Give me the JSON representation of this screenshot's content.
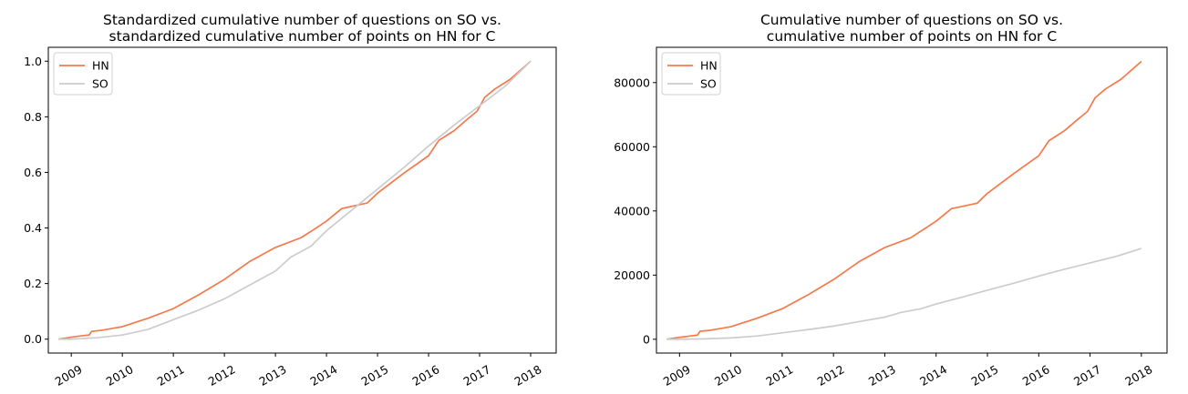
{
  "chart_data": [
    {
      "type": "line",
      "title": "Standardized cumulative number of questions on SO vs.\nstandardized cumulative number of points on HN for C",
      "xlabel": "",
      "ylabel": "",
      "xlim": [
        2008.55,
        2018.5
      ],
      "ylim": [
        -0.05,
        1.05
      ],
      "xticks": [
        2009,
        2010,
        2011,
        2012,
        2013,
        2014,
        2015,
        2016,
        2017,
        2018
      ],
      "yticks": [
        0.0,
        0.2,
        0.4,
        0.6,
        0.8,
        1.0
      ],
      "ytick_labels": [
        "0.0",
        "0.2",
        "0.4",
        "0.6",
        "0.8",
        "1.0"
      ],
      "xtick_rotation": 30,
      "grid": false,
      "legend": "top-left",
      "series": [
        {
          "name": "HN",
          "color": "#f4794b",
          "x": [
            2008.75,
            2009.0,
            2009.2,
            2009.35,
            2009.4,
            2009.6,
            2010.0,
            2010.5,
            2011.0,
            2011.5,
            2012.0,
            2012.5,
            2013.0,
            2013.5,
            2013.8,
            2014.0,
            2014.3,
            2014.8,
            2015.0,
            2015.5,
            2016.0,
            2016.2,
            2016.5,
            2016.75,
            2016.95,
            2017.1,
            2017.3,
            2017.6,
            2018.0
          ],
          "y": [
            0.0,
            0.007,
            0.012,
            0.015,
            0.028,
            0.032,
            0.045,
            0.075,
            0.11,
            0.16,
            0.215,
            0.28,
            0.33,
            0.365,
            0.4,
            0.425,
            0.47,
            0.49,
            0.525,
            0.595,
            0.66,
            0.715,
            0.75,
            0.79,
            0.82,
            0.87,
            0.9,
            0.935,
            1.0
          ]
        },
        {
          "name": "SO",
          "color": "#cccccc",
          "x": [
            2008.75,
            2009.0,
            2009.5,
            2010.0,
            2010.5,
            2011.0,
            2011.5,
            2012.0,
            2012.5,
            2013.0,
            2013.3,
            2013.7,
            2014.0,
            2014.5,
            2015.0,
            2015.5,
            2016.0,
            2016.5,
            2017.0,
            2017.5,
            2018.0
          ],
          "y": [
            0.0,
            0.0,
            0.005,
            0.015,
            0.035,
            0.07,
            0.105,
            0.145,
            0.195,
            0.245,
            0.295,
            0.335,
            0.39,
            0.465,
            0.54,
            0.615,
            0.695,
            0.77,
            0.84,
            0.91,
            1.0
          ]
        }
      ]
    },
    {
      "type": "line",
      "title": "Cumulative number of questions on SO vs.\ncumulative number of points on HN for C",
      "xlabel": "",
      "ylabel": "",
      "xlim": [
        2008.55,
        2018.5
      ],
      "ylim": [
        -4300,
        91000
      ],
      "xticks": [
        2009,
        2010,
        2011,
        2012,
        2013,
        2014,
        2015,
        2016,
        2017,
        2018
      ],
      "yticks": [
        0,
        20000,
        40000,
        60000,
        80000
      ],
      "ytick_labels": [
        "0",
        "20000",
        "40000",
        "60000",
        "80000"
      ],
      "xtick_rotation": 30,
      "grid": false,
      "legend": "top-left",
      "series": [
        {
          "name": "HN",
          "color": "#f4794b",
          "x": [
            2008.75,
            2009.0,
            2009.2,
            2009.35,
            2009.4,
            2009.6,
            2010.0,
            2010.5,
            2011.0,
            2011.5,
            2012.0,
            2012.5,
            2013.0,
            2013.5,
            2013.8,
            2014.0,
            2014.3,
            2014.8,
            2015.0,
            2015.5,
            2016.0,
            2016.2,
            2016.5,
            2016.75,
            2016.95,
            2017.1,
            2017.3,
            2017.6,
            2018.0
          ],
          "y": [
            0,
            600,
            1000,
            1300,
            2500,
            2800,
            3900,
            6500,
            9500,
            13800,
            18600,
            24200,
            28600,
            31600,
            34700,
            36800,
            40700,
            42400,
            45500,
            51500,
            57200,
            61900,
            65000,
            68400,
            71000,
            75300,
            78000,
            81000,
            86600
          ]
        },
        {
          "name": "SO",
          "color": "#cccccc",
          "x": [
            2008.75,
            2009.0,
            2009.5,
            2010.0,
            2010.5,
            2011.0,
            2011.5,
            2012.0,
            2012.5,
            2013.0,
            2013.3,
            2013.7,
            2014.0,
            2014.5,
            2015.0,
            2015.5,
            2016.0,
            2016.5,
            2017.0,
            2017.5,
            2018.0
          ],
          "y": [
            0,
            0,
            140,
            420,
            1000,
            2000,
            3000,
            4100,
            5500,
            6900,
            8300,
            9500,
            11000,
            13100,
            15300,
            17400,
            19700,
            21800,
            23800,
            25800,
            28300
          ]
        }
      ]
    }
  ]
}
